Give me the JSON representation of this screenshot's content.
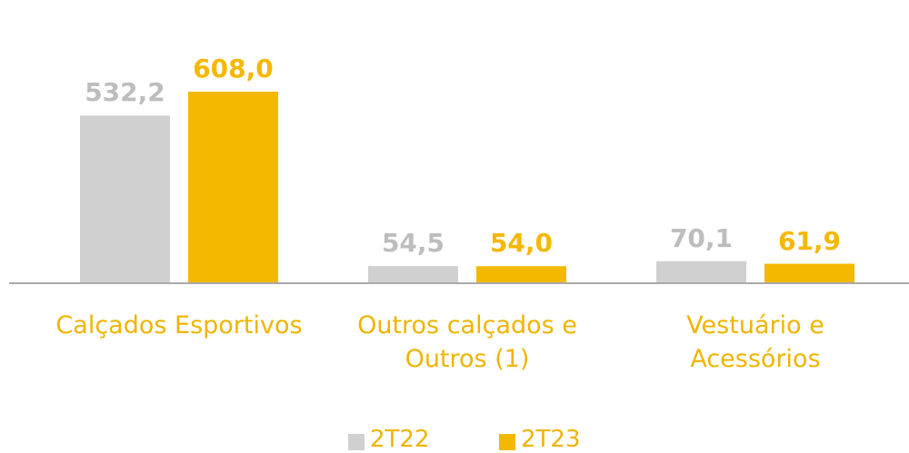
{
  "chart_data": {
    "type": "bar",
    "categories": [
      "Calçados Esportivos",
      "Outros calçados e Outros (1)",
      "Vestuário e Acessórios"
    ],
    "series": [
      {
        "name": "2T22",
        "color": "#d0d0d0",
        "values": [
          532.2,
          54.5,
          70.1
        ],
        "value_labels": [
          "532,2",
          "54,5",
          "70,1"
        ]
      },
      {
        "name": "2T23",
        "color": "#f5b800",
        "values": [
          608.0,
          54.0,
          61.9
        ],
        "value_labels": [
          "608,0",
          "54,0",
          "61,9"
        ]
      }
    ],
    "ylim": [
      0,
      700
    ]
  }
}
